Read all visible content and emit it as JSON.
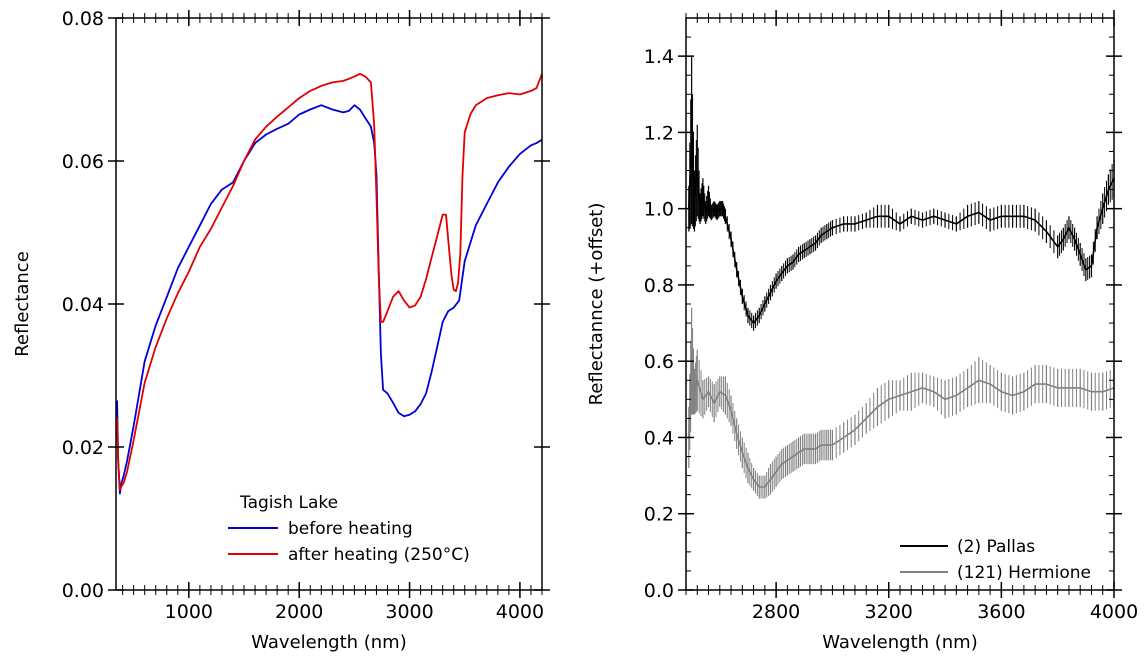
{
  "chart_data": [
    {
      "type": "line",
      "xlabel": "Wavelength (nm)",
      "ylabel": "Reflectance",
      "xlim": [
        340,
        4200
      ],
      "ylim": [
        0.0,
        0.08
      ],
      "xticks": [
        1000,
        2000,
        3000,
        4000
      ],
      "xtick_labels": [
        "1000",
        "2000",
        "3000",
        "4000"
      ],
      "yticks": [
        0.0,
        0.02,
        0.04,
        0.06,
        0.08
      ],
      "ytick_labels": [
        "0.00",
        "0.02",
        "0.04",
        "0.06",
        "0.08"
      ],
      "grid": false,
      "legend": {
        "title": "Tagish Lake",
        "position": "bottom-right"
      },
      "series": [
        {
          "name": "before heating",
          "color": "#0000d8",
          "x": [
            350,
            360,
            375,
            390,
            410,
            440,
            500,
            600,
            700,
            800,
            900,
            1000,
            1100,
            1200,
            1300,
            1400,
            1500,
            1600,
            1700,
            1800,
            1900,
            2000,
            2100,
            2200,
            2300,
            2400,
            2450,
            2500,
            2550,
            2600,
            2650,
            2680,
            2700,
            2720,
            2740,
            2760,
            2800,
            2850,
            2900,
            2950,
            3000,
            3050,
            3100,
            3150,
            3200,
            3250,
            3300,
            3350,
            3400,
            3450,
            3500,
            3600,
            3700,
            3800,
            3900,
            4000,
            4100,
            4150,
            4200
          ],
          "y": [
            0.0265,
            0.018,
            0.0135,
            0.015,
            0.016,
            0.018,
            0.023,
            0.032,
            0.037,
            0.041,
            0.045,
            0.048,
            0.051,
            0.054,
            0.056,
            0.057,
            0.06,
            0.0625,
            0.0637,
            0.0645,
            0.0652,
            0.0665,
            0.0672,
            0.0678,
            0.0672,
            0.0668,
            0.067,
            0.0678,
            0.0672,
            0.066,
            0.0648,
            0.0625,
            0.058,
            0.045,
            0.033,
            0.028,
            0.0275,
            0.0262,
            0.0248,
            0.0243,
            0.0245,
            0.025,
            0.026,
            0.0275,
            0.0305,
            0.034,
            0.0375,
            0.039,
            0.0395,
            0.0405,
            0.046,
            0.051,
            0.054,
            0.057,
            0.0592,
            0.061,
            0.0622,
            0.0625,
            0.063
          ]
        },
        {
          "name": "after heating (250°C)",
          "color": "#e00000",
          "x": [
            350,
            360,
            375,
            390,
            410,
            440,
            500,
            600,
            700,
            800,
            900,
            1000,
            1100,
            1200,
            1300,
            1400,
            1500,
            1600,
            1700,
            1800,
            1900,
            2000,
            2100,
            2200,
            2300,
            2400,
            2450,
            2500,
            2550,
            2600,
            2650,
            2680,
            2700,
            2720,
            2740,
            2760,
            2800,
            2850,
            2900,
            2950,
            3000,
            3050,
            3100,
            3150,
            3200,
            3250,
            3300,
            3330,
            3350,
            3380,
            3400,
            3420,
            3440,
            3460,
            3480,
            3500,
            3550,
            3600,
            3700,
            3800,
            3900,
            4000,
            4100,
            4150,
            4200
          ],
          "y": [
            0.024,
            0.018,
            0.014,
            0.0145,
            0.015,
            0.0165,
            0.021,
            0.029,
            0.034,
            0.038,
            0.0415,
            0.0445,
            0.048,
            0.0505,
            0.0535,
            0.0565,
            0.06,
            0.063,
            0.0648,
            0.0662,
            0.0675,
            0.0688,
            0.0698,
            0.0705,
            0.071,
            0.0712,
            0.0715,
            0.0718,
            0.0722,
            0.0718,
            0.071,
            0.065,
            0.055,
            0.044,
            0.0375,
            0.0375,
            0.039,
            0.041,
            0.0418,
            0.0405,
            0.0395,
            0.0398,
            0.041,
            0.0435,
            0.0465,
            0.0495,
            0.0525,
            0.0525,
            0.049,
            0.044,
            0.042,
            0.0418,
            0.043,
            0.047,
            0.058,
            0.064,
            0.0665,
            0.0678,
            0.0688,
            0.0692,
            0.0695,
            0.0693,
            0.0698,
            0.0702,
            0.0722
          ]
        }
      ]
    },
    {
      "type": "line",
      "xlabel": "Wavelength (nm)",
      "ylabel": "Reflectannce (+offset)",
      "xlim": [
        2480,
        4000
      ],
      "ylim": [
        0.0,
        1.5
      ],
      "xticks": [
        2800,
        3200,
        3600,
        4000
      ],
      "xtick_labels": [
        "2800",
        "3200",
        "3600",
        "4000"
      ],
      "yticks": [
        0.0,
        0.2,
        0.4,
        0.6,
        0.8,
        1.0,
        1.2,
        1.4
      ],
      "ytick_labels": [
        "0.0",
        "0.2",
        "0.4",
        "0.6",
        "0.8",
        "1.0",
        "1.2",
        "1.4"
      ],
      "grid": false,
      "error_bars": true,
      "legend": {
        "position": "bottom-right"
      },
      "series": [
        {
          "name": "(2) Pallas",
          "color": "#000000",
          "x": [
            2490,
            2500,
            2510,
            2520,
            2530,
            2540,
            2550,
            2560,
            2570,
            2580,
            2590,
            2600,
            2610,
            2620,
            2640,
            2660,
            2680,
            2700,
            2720,
            2740,
            2760,
            2780,
            2800,
            2820,
            2840,
            2860,
            2880,
            2900,
            2920,
            2940,
            2960,
            2980,
            3000,
            3040,
            3080,
            3120,
            3160,
            3200,
            3240,
            3280,
            3320,
            3360,
            3400,
            3440,
            3480,
            3520,
            3560,
            3600,
            3640,
            3680,
            3720,
            3760,
            3800,
            3820,
            3840,
            3860,
            3880,
            3900,
            3920,
            3940,
            3960,
            3980,
            4000
          ],
          "y": [
            1.0,
            1.18,
            1.02,
            1.1,
            1.0,
            1.03,
            0.99,
            1.02,
            0.99,
            1.0,
            0.99,
            1.0,
            1.0,
            0.98,
            0.92,
            0.84,
            0.77,
            0.72,
            0.7,
            0.72,
            0.75,
            0.78,
            0.81,
            0.83,
            0.85,
            0.86,
            0.88,
            0.89,
            0.9,
            0.91,
            0.93,
            0.94,
            0.95,
            0.96,
            0.96,
            0.97,
            0.98,
            0.98,
            0.96,
            0.98,
            0.97,
            0.98,
            0.97,
            0.96,
            0.98,
            0.99,
            0.97,
            0.98,
            0.98,
            0.98,
            0.97,
            0.94,
            0.9,
            0.92,
            0.95,
            0.92,
            0.88,
            0.84,
            0.85,
            0.95,
            1.0,
            1.05,
            1.08
          ],
          "err": [
            0.06,
            0.22,
            0.08,
            0.12,
            0.04,
            0.05,
            0.03,
            0.04,
            0.02,
            0.02,
            0.02,
            0.02,
            0.02,
            0.02,
            0.02,
            0.02,
            0.02,
            0.02,
            0.02,
            0.02,
            0.02,
            0.02,
            0.02,
            0.02,
            0.02,
            0.02,
            0.02,
            0.02,
            0.02,
            0.02,
            0.02,
            0.02,
            0.02,
            0.02,
            0.02,
            0.02,
            0.03,
            0.03,
            0.02,
            0.02,
            0.02,
            0.02,
            0.02,
            0.02,
            0.03,
            0.03,
            0.03,
            0.03,
            0.03,
            0.03,
            0.03,
            0.03,
            0.03,
            0.03,
            0.03,
            0.03,
            0.03,
            0.03,
            0.03,
            0.03,
            0.04,
            0.04,
            0.05
          ]
        },
        {
          "name": "(121) Hermione",
          "color": "#808080",
          "x": [
            2490,
            2500,
            2510,
            2520,
            2540,
            2560,
            2580,
            2600,
            2620,
            2640,
            2660,
            2680,
            2700,
            2720,
            2740,
            2760,
            2780,
            2800,
            2820,
            2840,
            2860,
            2880,
            2900,
            2920,
            2940,
            2960,
            2980,
            3000,
            3040,
            3080,
            3120,
            3160,
            3200,
            3240,
            3280,
            3320,
            3360,
            3400,
            3440,
            3480,
            3520,
            3560,
            3600,
            3640,
            3680,
            3720,
            3760,
            3800,
            3840,
            3880,
            3920,
            3960,
            4000
          ],
          "y": [
            0.4,
            0.6,
            0.52,
            0.55,
            0.5,
            0.52,
            0.49,
            0.52,
            0.51,
            0.47,
            0.41,
            0.36,
            0.32,
            0.29,
            0.27,
            0.27,
            0.29,
            0.31,
            0.33,
            0.34,
            0.35,
            0.36,
            0.37,
            0.37,
            0.37,
            0.38,
            0.38,
            0.38,
            0.4,
            0.42,
            0.45,
            0.48,
            0.5,
            0.51,
            0.52,
            0.53,
            0.52,
            0.5,
            0.51,
            0.53,
            0.55,
            0.54,
            0.52,
            0.51,
            0.52,
            0.54,
            0.54,
            0.53,
            0.53,
            0.53,
            0.52,
            0.52,
            0.53
          ],
          "err": [
            0.08,
            0.14,
            0.06,
            0.08,
            0.05,
            0.04,
            0.05,
            0.04,
            0.05,
            0.04,
            0.04,
            0.04,
            0.04,
            0.03,
            0.03,
            0.03,
            0.04,
            0.04,
            0.04,
            0.04,
            0.04,
            0.04,
            0.04,
            0.04,
            0.04,
            0.04,
            0.04,
            0.04,
            0.04,
            0.04,
            0.04,
            0.05,
            0.05,
            0.04,
            0.05,
            0.04,
            0.04,
            0.05,
            0.05,
            0.05,
            0.06,
            0.05,
            0.05,
            0.05,
            0.05,
            0.05,
            0.05,
            0.05,
            0.05,
            0.05,
            0.05,
            0.05,
            0.05
          ]
        }
      ]
    }
  ]
}
